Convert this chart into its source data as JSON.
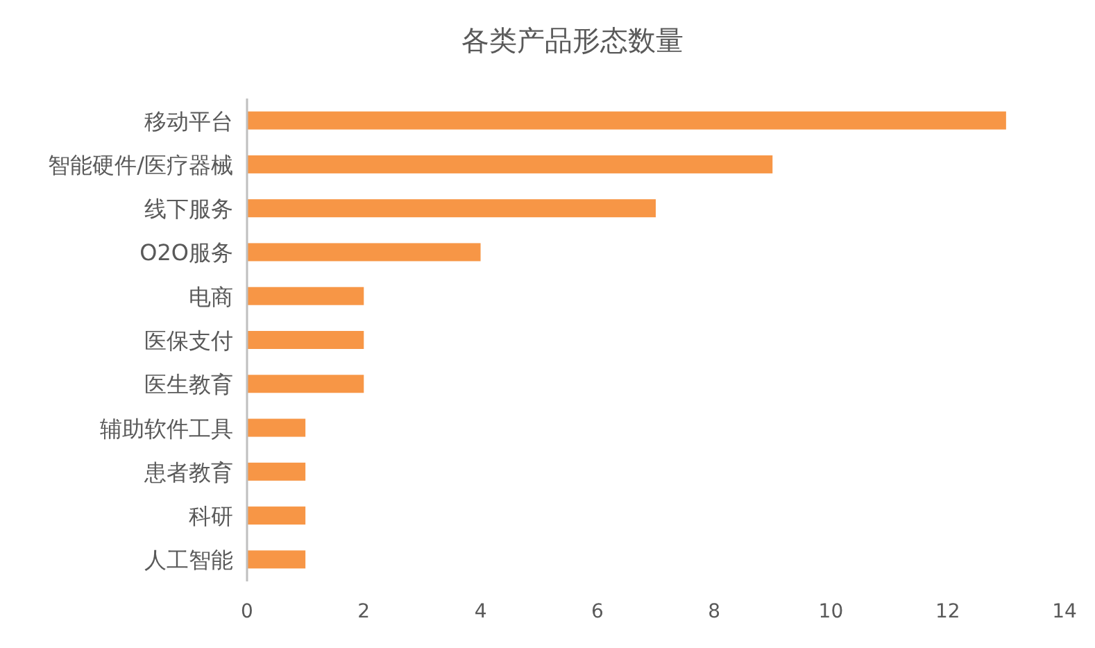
{
  "chart_data": {
    "type": "bar",
    "orientation": "horizontal",
    "title": "各类产品形态数量",
    "categories": [
      "移动平台",
      "智能硬件/医疗器械",
      "线下服务",
      "O2O服务",
      "电商",
      "医保支付",
      "医生教育",
      "辅助软件工具",
      "患者教育",
      "科研",
      "人工智能"
    ],
    "values": [
      13,
      9,
      7,
      4,
      2,
      2,
      2,
      1,
      1,
      1,
      1
    ],
    "color": "#f79646",
    "xlim": [
      0,
      14
    ],
    "xticks": [
      0,
      2,
      4,
      6,
      8,
      10,
      12,
      14
    ],
    "grid": false
  }
}
